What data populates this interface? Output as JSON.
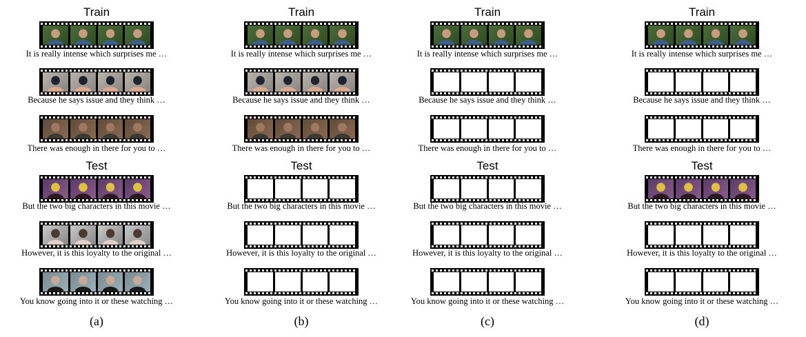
{
  "panels": [
    {
      "label": "(a)",
      "train_title": "Train",
      "test_title": "Test",
      "clips": [
        {
          "caption": "It is really intense which surprises me …",
          "visible": true,
          "palette": [
            "#4a6b3a",
            "#c89a80",
            "#3d5e8a",
            "#2e4e20"
          ]
        },
        {
          "caption": "Because he says issue and they think …",
          "visible": true,
          "palette": [
            "#b8b2aa",
            "#1e2430",
            "#d8a890",
            "#8a8680"
          ]
        },
        {
          "caption": "There was enough in there for you to …",
          "visible": true,
          "palette": [
            "#5e4a3a",
            "#a07860",
            "#3a3a32",
            "#8a6a50"
          ]
        },
        {
          "caption": "But the two big characters in this movie …",
          "visible": true,
          "palette": [
            "#5a3a6a",
            "#e0c040",
            "#2a1a20",
            "#8a5a8a"
          ]
        },
        {
          "caption": "However, it is this loyalty to the original …",
          "visible": true,
          "palette": [
            "#c8c8c8",
            "#4a3a30",
            "#e0d0c8",
            "#888888"
          ]
        },
        {
          "caption": "You know going into it or these watching …",
          "visible": true,
          "palette": [
            "#7a8a90",
            "#c8a898",
            "#1a1a1a",
            "#9ab0b8"
          ]
        }
      ]
    },
    {
      "label": "(b)",
      "train_title": "Train",
      "test_title": "Test",
      "clips": [
        {
          "caption": "It is really intense which surprises me …",
          "visible": true,
          "palette": [
            "#4a6b3a",
            "#c89a80",
            "#3d5e8a",
            "#2e4e20"
          ]
        },
        {
          "caption": "Because he says issue and they think …",
          "visible": true,
          "palette": [
            "#b8b2aa",
            "#1e2430",
            "#d8a890",
            "#8a8680"
          ]
        },
        {
          "caption": "There was enough in there for you to …",
          "visible": true,
          "palette": [
            "#5e4a3a",
            "#a07860",
            "#3a3a32",
            "#8a6a50"
          ]
        },
        {
          "caption": "But the two big characters in this movie …",
          "visible": false
        },
        {
          "caption": "However, it is this loyalty to the original …",
          "visible": false
        },
        {
          "caption": "You know going into it or these watching …",
          "visible": false
        }
      ]
    },
    {
      "label": "(c)",
      "train_title": "Train",
      "test_title": "Test",
      "clips": [
        {
          "caption": "It is really intense which surprises me …",
          "visible": true,
          "palette": [
            "#4a6b3a",
            "#c89a80",
            "#3d5e8a",
            "#2e4e20"
          ]
        },
        {
          "caption": "Because he says issue and they think …",
          "visible": false
        },
        {
          "caption": "There was enough in there for you to …",
          "visible": false
        },
        {
          "caption": "But the two big characters in this movie …",
          "visible": false
        },
        {
          "caption": "However, it is this loyalty to the original …",
          "visible": false
        },
        {
          "caption": "You know going into it or these watching …",
          "visible": false
        }
      ]
    },
    {
      "label": "(d)",
      "train_title": "Train",
      "test_title": "Test",
      "clips": [
        {
          "caption": "It is really intense which surprises me …",
          "visible": true,
          "palette": [
            "#4a6b3a",
            "#c89a80",
            "#3d5e8a",
            "#2e4e20"
          ]
        },
        {
          "caption": "Because he says issue and they think …",
          "visible": false
        },
        {
          "caption": "There was enough in there for you to …",
          "visible": false
        },
        {
          "caption": "But the two big characters in this movie …",
          "visible": true,
          "palette": [
            "#5a3a6a",
            "#e0c040",
            "#2a1a20",
            "#8a5a8a"
          ]
        },
        {
          "caption": "However, it is this loyalty to the original …",
          "visible": false
        },
        {
          "caption": "You know going into it or these watching …",
          "visible": false
        }
      ]
    }
  ]
}
